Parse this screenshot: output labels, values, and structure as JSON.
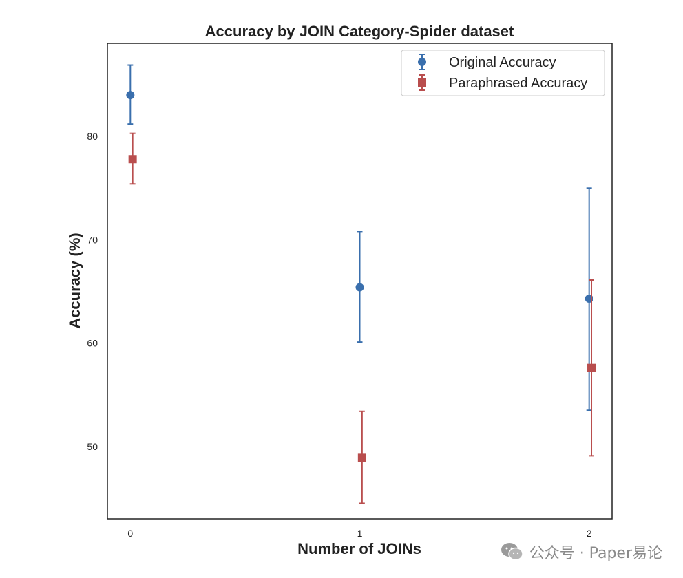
{
  "chart_data": {
    "type": "scatter",
    "title": "Accuracy by JOIN Category-Spider dataset",
    "xlabel": "Number of JOINs",
    "ylabel": "Accuracy (%)",
    "categories": [
      "0",
      "1",
      "2"
    ],
    "xlim": [
      -0.1,
      2.1
    ],
    "ylim": [
      43,
      89
    ],
    "yticks": [
      50,
      60,
      70,
      80
    ],
    "grid": false,
    "legend_position": "top-right",
    "series": [
      {
        "name": "Original Accuracy",
        "color": "#3a6fad",
        "marker": "circle",
        "x": [
          0,
          1,
          2
        ],
        "values": [
          84.0,
          65.4,
          64.3
        ],
        "err_low": [
          81.2,
          60.1,
          53.5
        ],
        "err_high": [
          86.9,
          70.8,
          75.0
        ]
      },
      {
        "name": "Paraphrased Accuracy",
        "color": "#b94e4e",
        "marker": "square",
        "x": [
          0.01,
          1.01,
          2.01
        ],
        "values": [
          77.8,
          48.9,
          57.6
        ],
        "err_low": [
          75.4,
          44.5,
          49.1
        ],
        "err_high": [
          80.3,
          53.4,
          66.1
        ]
      }
    ]
  },
  "watermark": {
    "text": "公众号 · Paper易论",
    "icon": "wechat-icon"
  }
}
